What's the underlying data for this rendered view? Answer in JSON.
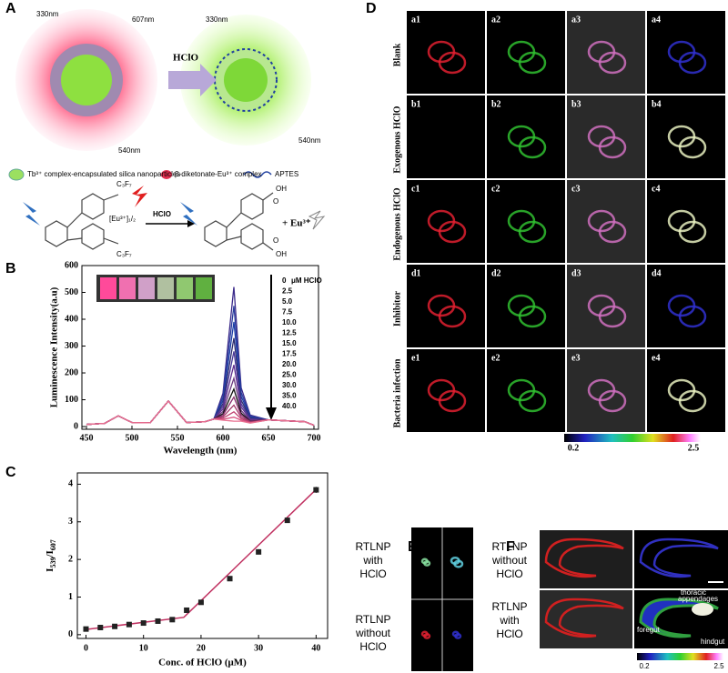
{
  "panel_letters": [
    "A",
    "B",
    "C",
    "D",
    "E",
    "F"
  ],
  "scheme": {
    "labels_left": [
      "330nm",
      "607nm",
      "540nm"
    ],
    "arrow_label": "HClO",
    "labels_right": [
      "330nm",
      "540nm"
    ],
    "legend": [
      "Tb³⁺ complex-encapsulated silica nanoparticles",
      "β-diketonate-Eu³⁺ complex",
      "APTES"
    ],
    "reaction": {
      "cf_top": "C₃F₇",
      "eu": "[Eu³⁺]₁/₂",
      "cf_bottom": "C₃F₇",
      "reagent": "HClO",
      "oh_top": "OH",
      "o_top": "O",
      "o_bottom": "O",
      "oh_bottom": "OH",
      "product": "+ Eu³⁺"
    }
  },
  "chart_data": [
    {
      "type": "line",
      "ylabel": "Luminescence Intensity(a.u)",
      "xlabel": "Wavelength (nm)",
      "legend_unit": "μM HClO",
      "x": [
        450,
        470,
        485,
        500,
        520,
        540,
        560,
        580,
        590,
        600,
        612,
        620,
        630,
        650,
        690,
        700
      ],
      "xlim": [
        445,
        705
      ],
      "xticks": [
        450,
        500,
        550,
        600,
        650,
        700
      ],
      "ylim": [
        -10,
        600
      ],
      "yticks": [
        0,
        100,
        200,
        300,
        400,
        500,
        600
      ],
      "series": [
        {
          "name": "0",
          "color": "#3b2a8a",
          "values": [
            8,
            12,
            40,
            15,
            14,
            95,
            15,
            18,
            28,
            124,
            520,
            145,
            43,
            25,
            18,
            5
          ]
        },
        {
          "name": "2.5",
          "color": "#2c3e9e",
          "values": [
            8,
            12,
            40,
            15,
            14,
            95,
            15,
            18,
            28,
            110,
            450,
            128,
            39,
            25,
            18,
            5
          ]
        },
        {
          "name": "5.0",
          "color": "#1e3fa8",
          "values": [
            8,
            12,
            40,
            15,
            14,
            95,
            15,
            18,
            28,
            98,
            390,
            113,
            35,
            25,
            18,
            5
          ]
        },
        {
          "name": "7.5",
          "color": "#2d2d6e",
          "values": [
            8,
            12,
            40,
            15,
            14,
            95,
            15,
            18,
            28,
            86,
            330,
            98,
            32,
            25,
            18,
            5
          ]
        },
        {
          "name": "10.0",
          "color": "#4a3a9a",
          "values": [
            8,
            12,
            40,
            15,
            14,
            95,
            15,
            18,
            28,
            76,
            280,
            85,
            29,
            25,
            18,
            5
          ]
        },
        {
          "name": "12.5",
          "color": "#5e2f8f",
          "values": [
            8,
            12,
            40,
            15,
            14,
            95,
            15,
            18,
            28,
            66,
            230,
            73,
            26,
            25,
            18,
            5
          ]
        },
        {
          "name": "15.0",
          "color": "#6b3a80",
          "values": [
            8,
            12,
            40,
            15,
            14,
            95,
            15,
            18,
            28,
            56,
            180,
            60,
            23,
            25,
            18,
            5
          ]
        },
        {
          "name": "17.5",
          "color": "#111111",
          "values": [
            8,
            12,
            40,
            15,
            14,
            95,
            15,
            18,
            28,
            48,
            140,
            50,
            20,
            25,
            18,
            5
          ]
        },
        {
          "name": "20.0",
          "color": "#8a2f6e",
          "values": [
            8,
            12,
            40,
            15,
            14,
            95,
            15,
            18,
            28,
            42,
            110,
            43,
            19,
            25,
            18,
            5
          ]
        },
        {
          "name": "25.0",
          "color": "#a33a6a",
          "values": [
            8,
            12,
            40,
            15,
            14,
            95,
            15,
            18,
            28,
            36,
            80,
            35,
            17,
            25,
            18,
            5
          ]
        },
        {
          "name": "30.0",
          "color": "#c04070",
          "values": [
            8,
            12,
            40,
            15,
            14,
            95,
            15,
            18,
            28,
            31,
            55,
            29,
            15,
            25,
            18,
            5
          ]
        },
        {
          "name": "35.0",
          "color": "#d85080",
          "values": [
            8,
            12,
            40,
            15,
            14,
            95,
            15,
            18,
            28,
            27,
            35,
            24,
            14,
            25,
            18,
            5
          ]
        },
        {
          "name": "40.0",
          "color": "#e87090",
          "values": [
            8,
            12,
            40,
            15,
            14,
            95,
            15,
            18,
            28,
            24,
            20,
            20,
            13,
            25,
            18,
            5
          ]
        }
      ]
    },
    {
      "type": "scatter",
      "xlabel": "Conc. of HClO (μM)",
      "ylabel": [
        "I",
        "539",
        "/I",
        "607"
      ],
      "x": [
        0,
        2.5,
        5,
        7.5,
        10,
        12.5,
        15,
        17.5,
        20,
        25,
        30,
        35,
        40
      ],
      "values": [
        0.15,
        0.19,
        0.22,
        0.27,
        0.31,
        0.36,
        0.4,
        0.65,
        0.86,
        1.49,
        2.2,
        3.04,
        3.85
      ],
      "errors": [
        0.03,
        0.03,
        0.03,
        0.03,
        0.03,
        0.03,
        0.03,
        0.05,
        0.05,
        0.05,
        0.06,
        0.07,
        0.08
      ],
      "color": "#222222",
      "fit": {
        "x": [
          0,
          17,
          40
        ],
        "y": [
          0.14,
          0.46,
          3.86
        ],
        "color": "#c03060"
      },
      "xlim": [
        -1.5,
        42
      ],
      "xticks": [
        0,
        10,
        20,
        30,
        40
      ],
      "ylim": [
        -0.1,
        4.3
      ],
      "yticks": [
        0,
        1,
        2,
        3,
        4
      ]
    }
  ],
  "panel_d": {
    "rows": [
      {
        "label": "Blank",
        "cells": [
          "a1",
          "a2",
          "a3",
          "a4"
        ]
      },
      {
        "label": "Exogenous HClO",
        "cells": [
          "b1",
          "b2",
          "b3",
          "b4"
        ]
      },
      {
        "label": "Endogenous HClO",
        "cells": [
          "c1",
          "c2",
          "c3",
          "c4"
        ]
      },
      {
        "label": "Inhibitor",
        "cells": [
          "d1",
          "d2",
          "d3",
          "d4"
        ]
      },
      {
        "label": "Bacteria infection",
        "cells": [
          "e1",
          "e2",
          "e3",
          "e4"
        ]
      }
    ],
    "colorbar": [
      "0.2",
      "2.5"
    ]
  },
  "panel_e": {
    "labels": [
      [
        "RTLNP",
        "with",
        "HClO"
      ],
      [
        "RTLNP",
        "without",
        "HClO"
      ]
    ]
  },
  "panel_f": {
    "labels": [
      [
        "RTLNP",
        "without",
        "HClO"
      ],
      [
        "RTLNP",
        "with",
        "HClO"
      ]
    ],
    "annotations": [
      "thoracic",
      "appendages",
      "foregut",
      "hindgut"
    ],
    "colorbar": [
      "0.2",
      "2.5"
    ]
  }
}
